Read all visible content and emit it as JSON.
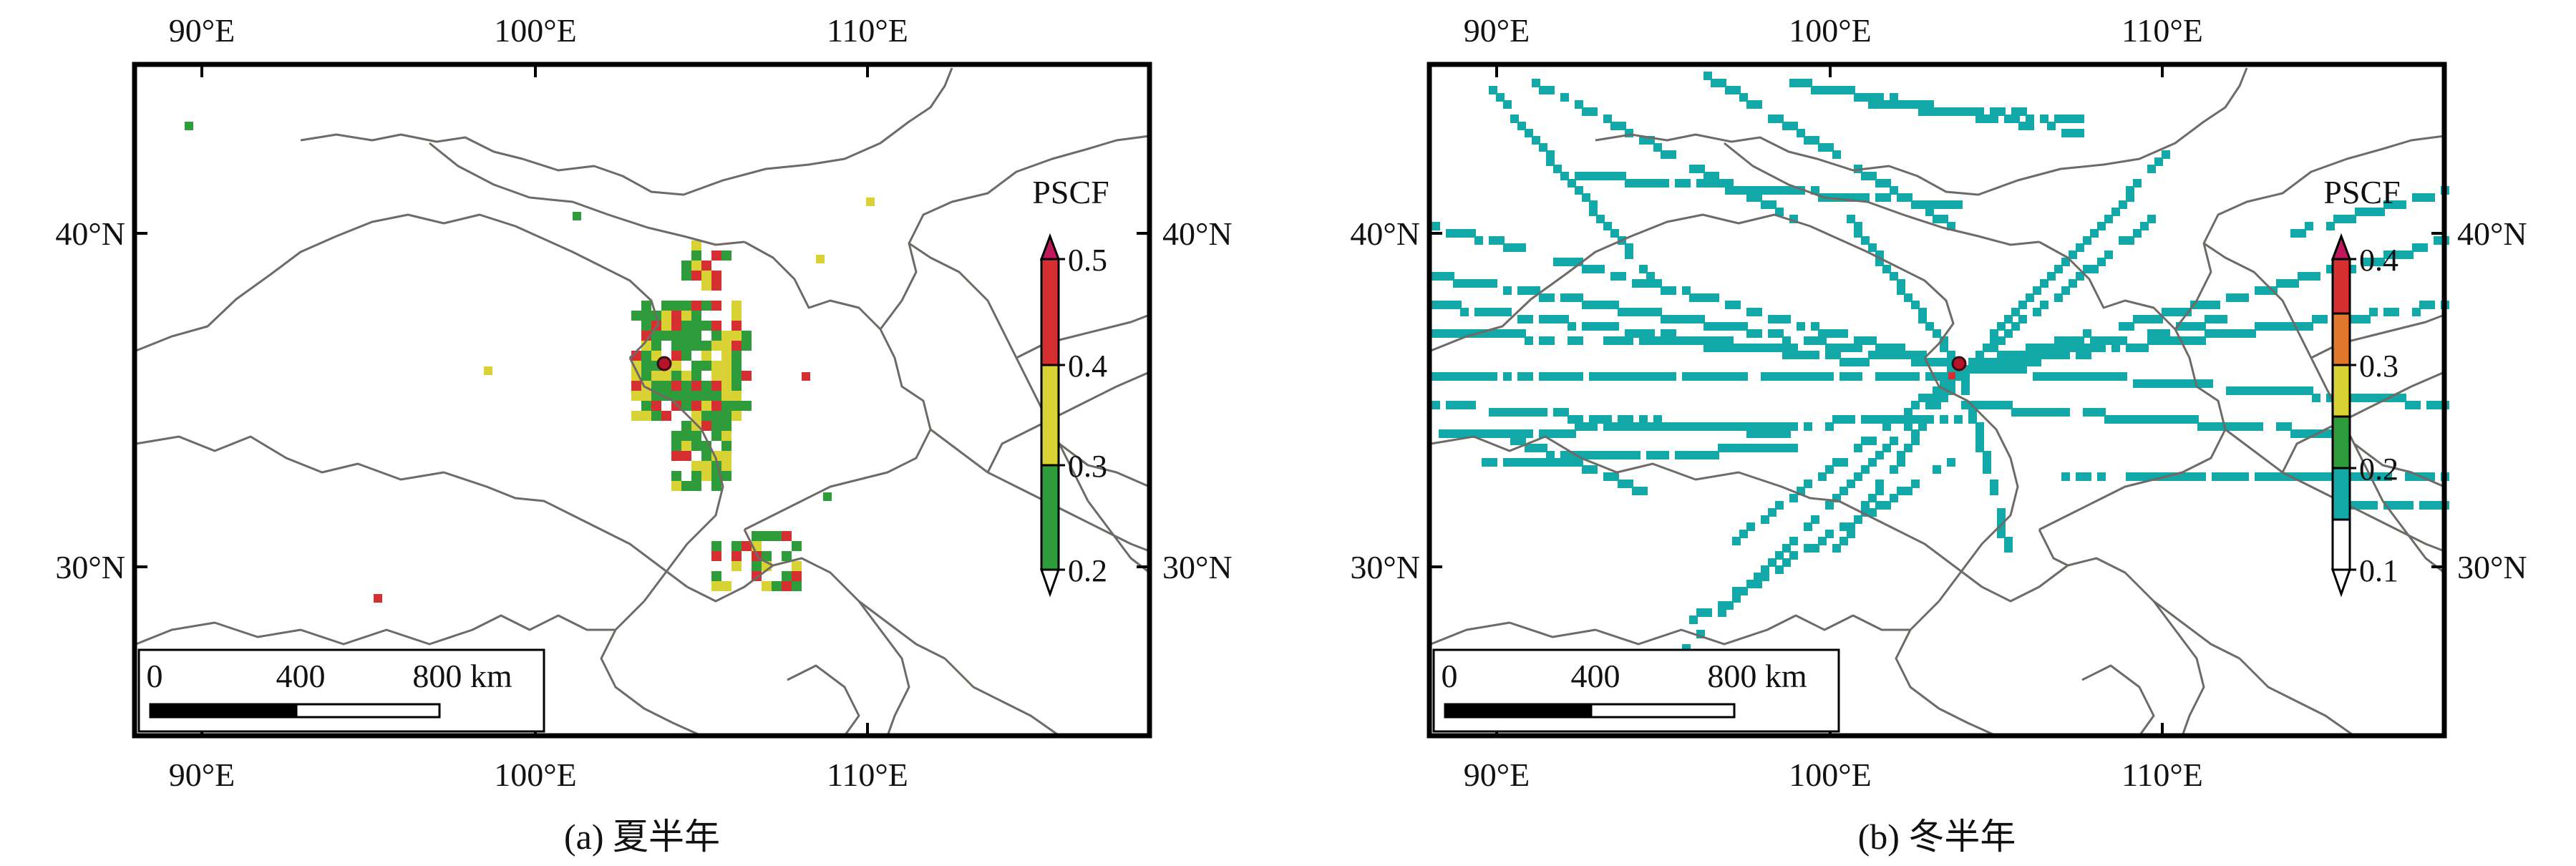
{
  "figure": {
    "panels": [
      {
        "caption": "(a) 夏半年",
        "lon_ticks_top": [
          "90°E",
          "100°E",
          "110°E"
        ],
        "lon_ticks_bottom": [
          "90°E",
          "100°E",
          "110°E"
        ],
        "lat_ticks_left": [
          "40°N",
          "30°N"
        ],
        "lat_ticks_right": [
          "40°N",
          "30°N"
        ],
        "colorbar": {
          "title": "PSCF",
          "ticks": [
            "0.5",
            "0.4",
            "0.3",
            "0.2"
          ],
          "colors": [
            "#d62f32",
            "#d9d235",
            "#2e9c3a"
          ]
        },
        "scalebar": {
          "labels": [
            "0",
            "400",
            "800 km"
          ]
        }
      },
      {
        "caption": "(b) 冬半年",
        "lon_ticks_top": [
          "90°E",
          "100°E",
          "110°E"
        ],
        "lon_ticks_bottom": [
          "90°E",
          "100°E",
          "110°E"
        ],
        "lat_ticks_left": [
          "40°N",
          "30°N"
        ],
        "lat_ticks_right": [
          "40°N",
          "30°N"
        ],
        "colorbar": {
          "title": "PSCF",
          "ticks": [
            "0.4",
            "0.3",
            "0.2",
            "0.1"
          ],
          "colors": [
            "#d62f32",
            "#e0772a",
            "#d9d235",
            "#2e9c3a",
            "#12a8a8",
            "#ffffff"
          ]
        },
        "scalebar": {
          "labels": [
            "0",
            "400",
            "800 km"
          ]
        }
      }
    ],
    "colors": {
      "boundary": "#6e6a66",
      "frame": "#000000",
      "receptor_site": "#b4142a",
      "summer_low": "#2e9c3a",
      "summer_mid": "#d9d235",
      "summer_high": "#d62f32",
      "winter_trajectory": "#12a8a8"
    }
  }
}
